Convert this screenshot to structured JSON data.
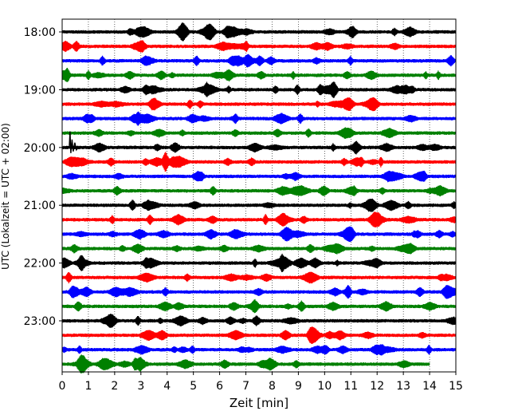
{
  "chart_data": {
    "type": "line",
    "subtype": "helicorder",
    "title": "",
    "xlabel": "Zeit  [min]",
    "ylabel": "UTC (Lokalzeit = UTC + 02:00)",
    "xlim": [
      0,
      15
    ],
    "x_ticks": [
      0,
      1,
      2,
      3,
      4,
      5,
      6,
      7,
      8,
      9,
      10,
      11,
      12,
      13,
      14,
      15
    ],
    "x_tick_labels": [
      "0",
      "1",
      "2",
      "3",
      "4",
      "5",
      "6",
      "7",
      "8",
      "9",
      "10",
      "11",
      "12",
      "13",
      "14",
      "15"
    ],
    "y_tick_labels": [
      "18:00",
      "19:00",
      "20:00",
      "21:00",
      "22:00",
      "23:00"
    ],
    "grid": "vertical dotted at every minute",
    "trace_colors": [
      "#000000",
      "#ff0000",
      "#0000ff",
      "#008000"
    ],
    "traces": [
      {
        "start": "18:00",
        "color": "#000000",
        "end_min": 15
      },
      {
        "start": "18:15",
        "color": "#ff0000",
        "end_min": 15
      },
      {
        "start": "18:30",
        "color": "#0000ff",
        "end_min": 15
      },
      {
        "start": "18:45",
        "color": "#008000",
        "end_min": 15
      },
      {
        "start": "19:00",
        "color": "#000000",
        "end_min": 15
      },
      {
        "start": "19:15",
        "color": "#ff0000",
        "end_min": 15
      },
      {
        "start": "19:30",
        "color": "#0000ff",
        "end_min": 15
      },
      {
        "start": "19:45",
        "color": "#008000",
        "end_min": 15
      },
      {
        "start": "20:00",
        "color": "#000000",
        "end_min": 15
      },
      {
        "start": "20:15",
        "color": "#ff0000",
        "end_min": 15
      },
      {
        "start": "20:30",
        "color": "#0000ff",
        "end_min": 15
      },
      {
        "start": "20:45",
        "color": "#008000",
        "end_min": 15
      },
      {
        "start": "21:00",
        "color": "#000000",
        "end_min": 15
      },
      {
        "start": "21:15",
        "color": "#ff0000",
        "end_min": 15
      },
      {
        "start": "21:30",
        "color": "#0000ff",
        "end_min": 15
      },
      {
        "start": "21:45",
        "color": "#008000",
        "end_min": 15
      },
      {
        "start": "22:00",
        "color": "#000000",
        "end_min": 15
      },
      {
        "start": "22:15",
        "color": "#ff0000",
        "end_min": 15
      },
      {
        "start": "22:30",
        "color": "#0000ff",
        "end_min": 15
      },
      {
        "start": "22:45",
        "color": "#008000",
        "end_min": 15
      },
      {
        "start": "23:00",
        "color": "#000000",
        "end_min": 15
      },
      {
        "start": "23:15",
        "color": "#ff0000",
        "end_min": 15
      },
      {
        "start": "23:30",
        "color": "#0000ff",
        "end_min": 15
      },
      {
        "start": "23:45",
        "color": "#008000",
        "end_min": 14
      }
    ],
    "events": [
      {
        "trace_start": "20:00",
        "at_min": 0.3,
        "note": "large spike"
      }
    ]
  }
}
